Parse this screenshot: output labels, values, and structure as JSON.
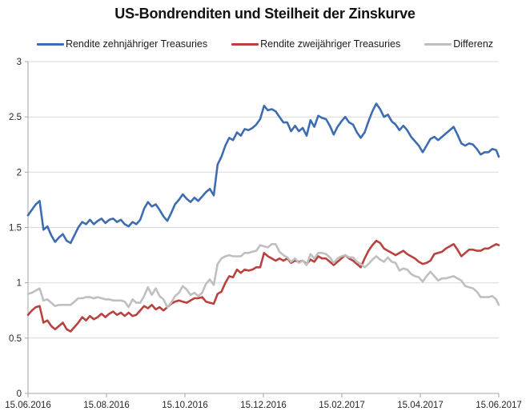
{
  "chart_data": {
    "type": "line",
    "title": "US-Bondrenditen und Steilheit der Zinskurve",
    "legend_position": "top",
    "grid": "horizontal",
    "x_axis": {
      "tick_labels": [
        "15.06.2016",
        "15.08.2016",
        "15.10.2016",
        "15.12.2016",
        "15.02.2017",
        "15.04.2017",
        "15.06.2017"
      ],
      "span_days": 365
    },
    "y_axis": {
      "min": 0,
      "max": 3,
      "ticks": [
        0,
        0.5,
        1,
        1.5,
        2,
        2.5,
        3
      ],
      "tick_labels": [
        "0",
        "0.5",
        "1",
        "1.5",
        "2",
        "2.5",
        "3"
      ]
    },
    "colors": {
      "blue_10y": "#3E6CB0",
      "red_2y": "#B9423F",
      "gray_diff": "#BFBFBF",
      "gridline": "#D9D9D9",
      "axis": "#A6A6A6",
      "title_text": "#111111",
      "tick_text": "#262626"
    },
    "days": [
      0,
      3,
      6,
      9,
      12,
      15,
      18,
      21,
      24,
      27,
      30,
      33,
      36,
      39,
      42,
      45,
      48,
      51,
      54,
      57,
      60,
      63,
      66,
      69,
      72,
      75,
      78,
      81,
      84,
      87,
      90,
      93,
      96,
      99,
      102,
      105,
      108,
      111,
      114,
      117,
      120,
      123,
      126,
      129,
      132,
      135,
      138,
      141,
      144,
      147,
      150,
      153,
      156,
      159,
      162,
      165,
      168,
      171,
      174,
      177,
      180,
      183,
      186,
      189,
      192,
      195,
      198,
      201,
      204,
      207,
      210,
      213,
      216,
      219,
      222,
      225,
      228,
      231,
      234,
      237,
      240,
      243,
      246,
      249,
      252,
      255,
      258,
      261,
      264,
      267,
      270,
      273,
      276,
      279,
      282,
      285,
      288,
      291,
      294,
      297,
      300,
      303,
      306,
      309,
      312,
      315,
      318,
      321,
      324,
      327,
      330,
      333,
      336,
      339,
      342,
      345,
      348,
      351,
      354,
      357,
      360,
      363,
      365
    ],
    "series": [
      {
        "name": "Rendite zehnjähriger Treasuries",
        "color_key": "blue_10y",
        "values": [
          1.61,
          1.66,
          1.71,
          1.74,
          1.48,
          1.51,
          1.43,
          1.37,
          1.41,
          1.44,
          1.38,
          1.36,
          1.43,
          1.5,
          1.55,
          1.53,
          1.57,
          1.53,
          1.56,
          1.58,
          1.54,
          1.57,
          1.58,
          1.55,
          1.57,
          1.53,
          1.51,
          1.55,
          1.53,
          1.57,
          1.67,
          1.73,
          1.69,
          1.71,
          1.66,
          1.6,
          1.56,
          1.63,
          1.71,
          1.75,
          1.8,
          1.76,
          1.73,
          1.77,
          1.74,
          1.78,
          1.82,
          1.85,
          1.79,
          2.07,
          2.14,
          2.24,
          2.31,
          2.29,
          2.36,
          2.33,
          2.39,
          2.38,
          2.4,
          2.43,
          2.48,
          2.6,
          2.56,
          2.57,
          2.55,
          2.5,
          2.45,
          2.45,
          2.37,
          2.42,
          2.37,
          2.4,
          2.33,
          2.47,
          2.41,
          2.51,
          2.49,
          2.48,
          2.42,
          2.34,
          2.41,
          2.46,
          2.5,
          2.45,
          2.43,
          2.36,
          2.31,
          2.36,
          2.46,
          2.55,
          2.62,
          2.57,
          2.5,
          2.52,
          2.46,
          2.43,
          2.38,
          2.42,
          2.38,
          2.32,
          2.28,
          2.24,
          2.18,
          2.24,
          2.3,
          2.32,
          2.29,
          2.32,
          2.35,
          2.38,
          2.41,
          2.34,
          2.26,
          2.24,
          2.26,
          2.25,
          2.21,
          2.16,
          2.18,
          2.18,
          2.21,
          2.2,
          2.14
        ]
      },
      {
        "name": "Rendite zweijähriger Treasuries",
        "color_key": "red_2y",
        "values": [
          0.71,
          0.75,
          0.78,
          0.79,
          0.64,
          0.66,
          0.61,
          0.58,
          0.61,
          0.64,
          0.58,
          0.56,
          0.6,
          0.64,
          0.69,
          0.66,
          0.7,
          0.67,
          0.69,
          0.72,
          0.69,
          0.72,
          0.74,
          0.71,
          0.73,
          0.7,
          0.73,
          0.7,
          0.71,
          0.75,
          0.79,
          0.77,
          0.8,
          0.76,
          0.78,
          0.75,
          0.78,
          0.81,
          0.83,
          0.84,
          0.83,
          0.82,
          0.84,
          0.86,
          0.86,
          0.87,
          0.83,
          0.82,
          0.81,
          0.9,
          0.92,
          1.0,
          1.06,
          1.05,
          1.12,
          1.09,
          1.12,
          1.11,
          1.12,
          1.14,
          1.14,
          1.27,
          1.24,
          1.22,
          1.2,
          1.22,
          1.2,
          1.22,
          1.18,
          1.2,
          1.19,
          1.2,
          1.17,
          1.21,
          1.19,
          1.24,
          1.22,
          1.22,
          1.19,
          1.16,
          1.19,
          1.22,
          1.25,
          1.22,
          1.2,
          1.17,
          1.14,
          1.22,
          1.29,
          1.34,
          1.38,
          1.36,
          1.31,
          1.29,
          1.27,
          1.25,
          1.27,
          1.29,
          1.26,
          1.24,
          1.22,
          1.19,
          1.17,
          1.18,
          1.2,
          1.26,
          1.27,
          1.28,
          1.31,
          1.33,
          1.35,
          1.3,
          1.24,
          1.27,
          1.3,
          1.3,
          1.29,
          1.29,
          1.31,
          1.31,
          1.33,
          1.35,
          1.34
        ]
      },
      {
        "name": "Differenz",
        "color_key": "gray_diff",
        "values": [
          0.9,
          0.91,
          0.93,
          0.95,
          0.84,
          0.85,
          0.82,
          0.79,
          0.8,
          0.8,
          0.8,
          0.8,
          0.83,
          0.86,
          0.86,
          0.87,
          0.87,
          0.86,
          0.87,
          0.86,
          0.85,
          0.85,
          0.84,
          0.84,
          0.84,
          0.83,
          0.78,
          0.85,
          0.82,
          0.82,
          0.88,
          0.96,
          0.89,
          0.95,
          0.88,
          0.85,
          0.78,
          0.82,
          0.88,
          0.91,
          0.97,
          0.94,
          0.89,
          0.91,
          0.88,
          0.91,
          0.99,
          1.03,
          0.98,
          1.17,
          1.22,
          1.24,
          1.25,
          1.24,
          1.24,
          1.24,
          1.27,
          1.27,
          1.28,
          1.29,
          1.34,
          1.33,
          1.32,
          1.35,
          1.35,
          1.28,
          1.25,
          1.23,
          1.19,
          1.22,
          1.18,
          1.2,
          1.16,
          1.26,
          1.22,
          1.27,
          1.27,
          1.26,
          1.23,
          1.18,
          1.22,
          1.24,
          1.25,
          1.23,
          1.23,
          1.19,
          1.17,
          1.14,
          1.17,
          1.21,
          1.24,
          1.21,
          1.19,
          1.23,
          1.19,
          1.18,
          1.11,
          1.13,
          1.12,
          1.08,
          1.06,
          1.05,
          1.01,
          1.06,
          1.1,
          1.06,
          1.02,
          1.04,
          1.04,
          1.05,
          1.06,
          1.04,
          1.02,
          0.97,
          0.96,
          0.95,
          0.92,
          0.87,
          0.87,
          0.87,
          0.88,
          0.85,
          0.8
        ]
      }
    ]
  }
}
